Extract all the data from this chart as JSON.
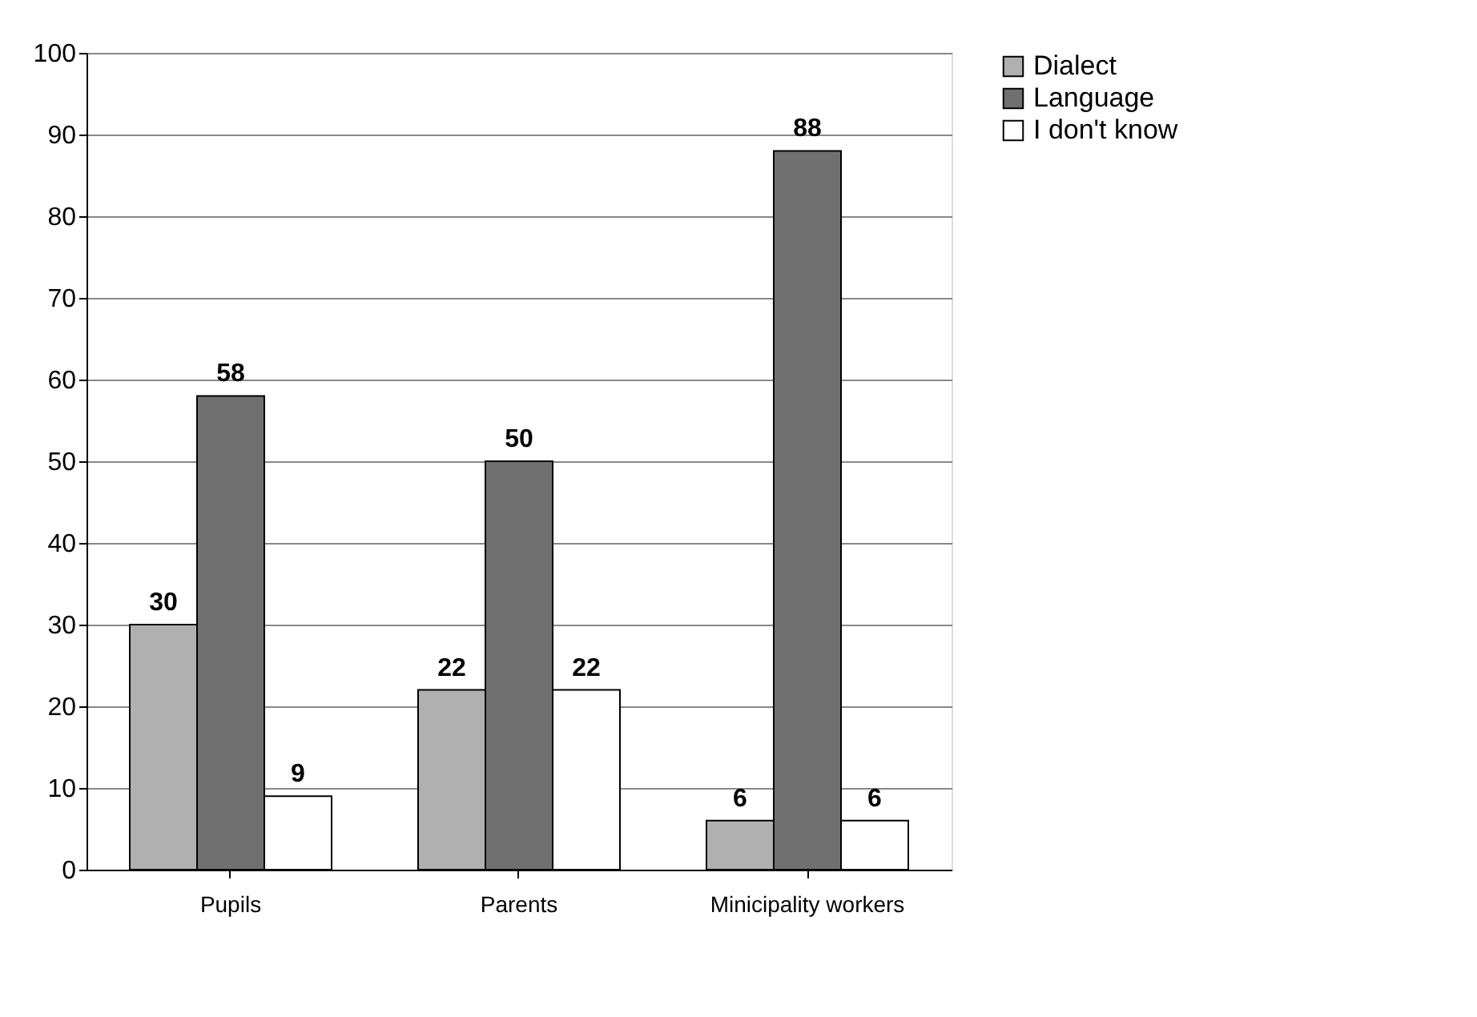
{
  "chart_data": {
    "type": "bar",
    "categories": [
      "Pupils",
      "Parents",
      "Minicipality workers"
    ],
    "series": [
      {
        "name": "Dialect",
        "color": "#b0b0b0",
        "values": [
          30,
          22,
          6
        ]
      },
      {
        "name": "Language",
        "color": "#707070",
        "values": [
          58,
          50,
          88
        ]
      },
      {
        "name": "I don't know",
        "color": "#ffffff",
        "values": [
          9,
          22,
          6
        ]
      }
    ],
    "ylim": [
      0,
      100
    ],
    "yticks": [
      0,
      10,
      20,
      30,
      40,
      50,
      60,
      70,
      80,
      90,
      100
    ],
    "grid": "y",
    "legend": "right",
    "data_labels": true
  }
}
